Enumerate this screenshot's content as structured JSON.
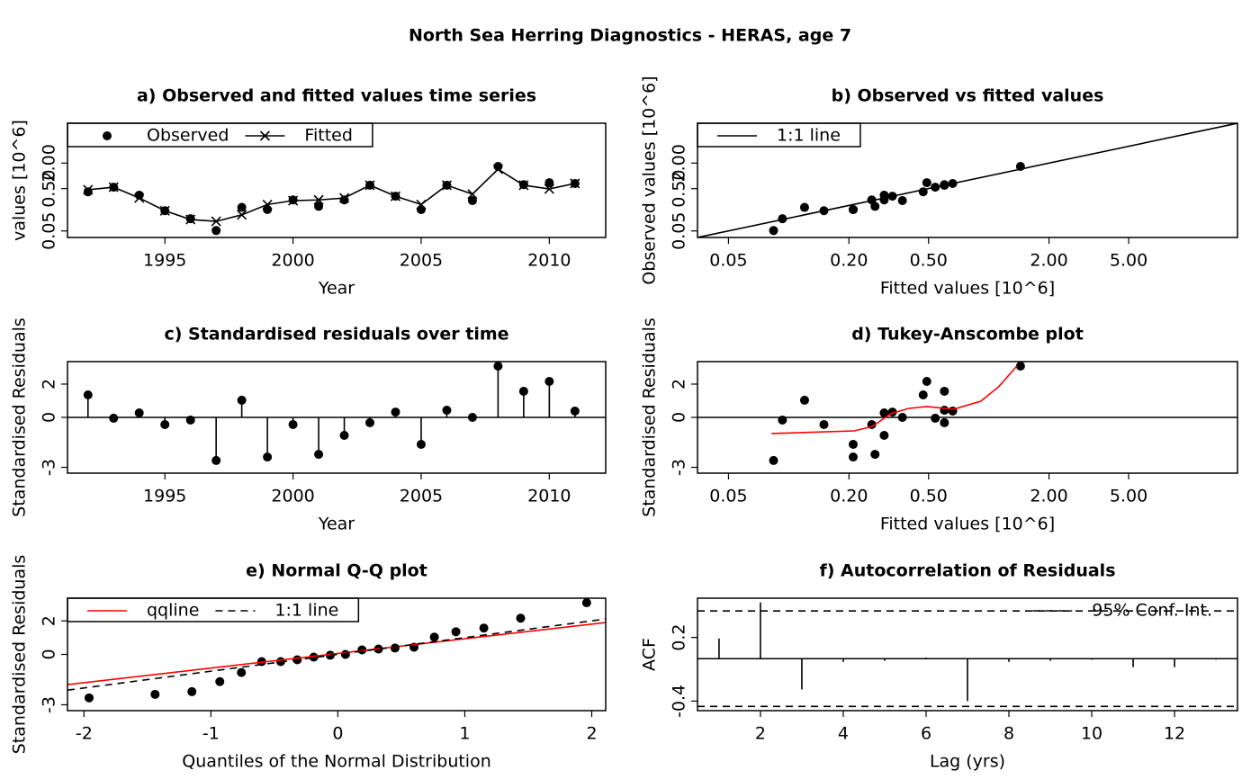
{
  "title": "North Sea Herring Diagnostics - HERAS, age 7",
  "chart_data": [
    {
      "type": "line",
      "title": "a) Observed and fitted values time series",
      "xlabel": "Year",
      "ylabel": "values [10^6]",
      "x": [
        1992,
        1993,
        1994,
        1995,
        1996,
        1997,
        1998,
        1999,
        2000,
        2001,
        2002,
        2003,
        2004,
        2005,
        2006,
        2007,
        2008,
        2009,
        2010,
        2011
      ],
      "xlim": [
        1991.2,
        2012.2
      ],
      "xticks": [
        1995,
        2000,
        2005,
        2010
      ],
      "ylim": [
        0.035,
        17.5
      ],
      "log_y": true,
      "yticks": [
        {
          "value": 0.05,
          "label": "0.05"
        },
        {
          "value": 0.5,
          "label": "0.50"
        },
        {
          "value": 2,
          "label": "2.00"
        }
      ],
      "legend": "top-left",
      "legend_frame": true,
      "series": [
        {
          "name": "Observed",
          "color": "#000000",
          "marker": "dot",
          "line": "none",
          "values": [
            0.42,
            0.54,
            0.35,
            0.15,
            0.097,
            0.051,
            0.18,
            0.16,
            0.27,
            0.19,
            0.27,
            0.6,
            0.33,
            0.16,
            0.6,
            0.26,
            1.67,
            0.62,
            0.69,
            0.66
          ]
        },
        {
          "name": "Fitted",
          "color": "#000000",
          "marker": "x",
          "line": "solid",
          "values": [
            0.47,
            0.54,
            0.3,
            0.15,
            0.093,
            0.084,
            0.12,
            0.21,
            0.26,
            0.27,
            0.3,
            0.6,
            0.33,
            0.21,
            0.6,
            0.37,
            1.44,
            0.6,
            0.49,
            0.66
          ]
        }
      ]
    },
    {
      "type": "scatter",
      "title": "b) Observed vs fitted values",
      "xlabel": "Fitted values [10^6]",
      "ylabel": "Observed values [10^6]",
      "xlim": [
        0.035,
        17.5
      ],
      "log_x": true,
      "xticks": [
        {
          "value": 0.05,
          "label": "0.05"
        },
        {
          "value": 0.2,
          "label": "0.20"
        },
        {
          "value": 0.5,
          "label": "0.50"
        },
        {
          "value": 2,
          "label": "2.00"
        },
        {
          "value": 5,
          "label": "5.00"
        }
      ],
      "ylim": [
        0.035,
        17.5
      ],
      "log_y": true,
      "yticks": [
        {
          "value": 0.05,
          "label": "0.05"
        },
        {
          "value": 0.5,
          "label": "0.50"
        },
        {
          "value": 2,
          "label": "2.00"
        }
      ],
      "legend": "top-left",
      "legend_frame": true,
      "series": [
        {
          "color": "#000000",
          "marker": "dot",
          "line": "none",
          "x": [
            0.47,
            0.54,
            0.3,
            0.15,
            0.093,
            0.084,
            0.12,
            0.21,
            0.26,
            0.27,
            0.3,
            0.6,
            0.33,
            0.21,
            0.6,
            0.37,
            1.44,
            0.6,
            0.49,
            0.66
          ],
          "values": [
            0.42,
            0.54,
            0.35,
            0.15,
            0.097,
            0.051,
            0.18,
            0.16,
            0.27,
            0.19,
            0.27,
            0.6,
            0.33,
            0.16,
            0.6,
            0.26,
            1.67,
            0.62,
            0.69,
            0.66
          ]
        },
        {
          "name": "1:1 line",
          "color": "#000000",
          "marker": "none",
          "line": "solid",
          "x": [
            0.035,
            17.5
          ],
          "values": [
            0.035,
            17.5
          ]
        }
      ]
    },
    {
      "type": "stem",
      "title": "c) Standardised residuals over time",
      "xlabel": "Year",
      "ylabel": "Standardised Residuals",
      "x": [
        1992,
        1993,
        1994,
        1995,
        1996,
        1997,
        1998,
        1999,
        2000,
        2001,
        2002,
        2003,
        2004,
        2005,
        2006,
        2007,
        2008,
        2009,
        2010,
        2011
      ],
      "xlim": [
        1991.2,
        2012.2
      ],
      "xticks": [
        1995,
        2000,
        2005,
        2010
      ],
      "ylim": [
        -3.35,
        3.35
      ],
      "yticks": [
        -3,
        0,
        2
      ],
      "hline": 0,
      "series": [
        {
          "color": "#000000",
          "marker": "dot",
          "line": "none",
          "values": [
            1.35,
            -0.05,
            0.27,
            -0.43,
            -0.16,
            -2.59,
            1.03,
            -2.38,
            -0.43,
            -2.22,
            -1.08,
            -0.32,
            0.32,
            -1.62,
            0.43,
            0.0,
            3.08,
            1.57,
            2.16,
            0.38
          ]
        }
      ]
    },
    {
      "type": "scatter",
      "title": "d) Tukey-Anscombe plot",
      "xlabel": "Fitted values [10^6]",
      "ylabel": "Standardised Residuals",
      "xlim": [
        0.035,
        17.5
      ],
      "log_x": true,
      "xticks": [
        {
          "value": 0.05,
          "label": "0.05"
        },
        {
          "value": 0.2,
          "label": "0.20"
        },
        {
          "value": 0.5,
          "label": "0.50"
        },
        {
          "value": 2,
          "label": "2.00"
        },
        {
          "value": 5,
          "label": "5.00"
        }
      ],
      "ylim": [
        -3.35,
        3.35
      ],
      "yticks": [
        -3,
        0,
        2
      ],
      "hline": 0,
      "series": [
        {
          "color": "#000000",
          "marker": "dot",
          "line": "none",
          "x": [
            0.47,
            0.54,
            0.3,
            0.15,
            0.093,
            0.084,
            0.12,
            0.21,
            0.26,
            0.27,
            0.3,
            0.6,
            0.33,
            0.21,
            0.6,
            0.37,
            1.44,
            0.6,
            0.49,
            0.66
          ],
          "values": [
            1.35,
            -0.05,
            0.27,
            -0.43,
            -0.16,
            -2.59,
            1.03,
            -2.38,
            -0.43,
            -2.22,
            -1.08,
            -0.32,
            0.32,
            -1.62,
            0.43,
            0.0,
            3.08,
            1.57,
            2.16,
            0.38
          ]
        },
        {
          "color": "#ff0000",
          "marker": "none",
          "line": "solid",
          "x": [
            0.082,
            0.213,
            0.262,
            0.323,
            0.398,
            0.49,
            0.668,
            0.912,
            1.12,
            1.38
          ],
          "values": [
            -0.97,
            -0.81,
            -0.54,
            0.22,
            0.54,
            0.65,
            0.49,
            0.97,
            1.84,
            3.08
          ]
        }
      ]
    },
    {
      "type": "scatter",
      "title": "e) Normal Q-Q plot",
      "xlabel": "Quantiles of the Normal Distribution",
      "ylabel": "Standardised Residuals",
      "xlim": [
        -2.13,
        2.11
      ],
      "xticks": [
        -2,
        -1,
        0,
        1,
        2
      ],
      "ylim": [
        -3.35,
        3.35
      ],
      "yticks": [
        -3,
        0,
        2
      ],
      "legend": "top-left",
      "legend_frame": true,
      "series": [
        {
          "color": "#000000",
          "marker": "dot",
          "line": "none",
          "x": [
            -1.96,
            -1.44,
            -1.15,
            -0.93,
            -0.76,
            -0.6,
            -0.45,
            -0.32,
            -0.19,
            -0.06,
            0.06,
            0.19,
            0.32,
            0.45,
            0.6,
            0.76,
            0.93,
            1.15,
            1.44,
            1.96
          ],
          "values": [
            -2.59,
            -2.38,
            -2.22,
            -1.62,
            -1.08,
            -0.43,
            -0.43,
            -0.32,
            -0.16,
            -0.05,
            0.0,
            0.27,
            0.32,
            0.38,
            0.43,
            1.03,
            1.35,
            1.57,
            2.16,
            3.08
          ]
        },
        {
          "name": "qqline",
          "color": "#ff0000",
          "marker": "none",
          "line": "solid",
          "x": [
            -2.13,
            2.11
          ],
          "values": [
            -1.8,
            1.9
          ]
        },
        {
          "name": "1:1 line",
          "color": "#000000",
          "marker": "none",
          "line": "dashed",
          "x": [
            -2.13,
            2.11
          ],
          "values": [
            -2.13,
            2.11
          ]
        }
      ]
    },
    {
      "type": "bar",
      "title": "f) Autocorrelation of Residuals",
      "xlabel": "Lag (yrs)",
      "ylabel": "ACF",
      "xlim": [
        0.48,
        13.52
      ],
      "xticks": [
        2,
        4,
        6,
        8,
        10,
        12
      ],
      "ylim": [
        -0.49,
        0.57
      ],
      "yticks": [
        -0.4,
        0.2
      ],
      "hline": 0,
      "legend": "top-right",
      "legend_frame": false,
      "series": [
        {
          "color": "#000000",
          "marker": "none",
          "line": "none",
          "x": [
            1,
            2,
            3,
            4,
            5,
            6,
            7,
            8,
            9,
            10,
            11,
            12,
            13
          ],
          "values": [
            0.19,
            0.53,
            -0.29,
            -0.03,
            -0.02,
            0.01,
            -0.4,
            -0.03,
            -0.02,
            -0.01,
            -0.08,
            -0.08,
            -0.01
          ]
        },
        {
          "name": "95% Conf. Int.",
          "color": "#000000",
          "marker": "none",
          "line": "dashed",
          "x": [
            0.48,
            13.52
          ],
          "values": [
            0.45,
            0.45
          ]
        },
        {
          "color": "#000000",
          "marker": "none",
          "line": "dashed",
          "x": [
            0.48,
            13.52
          ],
          "values": [
            -0.45,
            -0.45
          ]
        }
      ]
    }
  ]
}
